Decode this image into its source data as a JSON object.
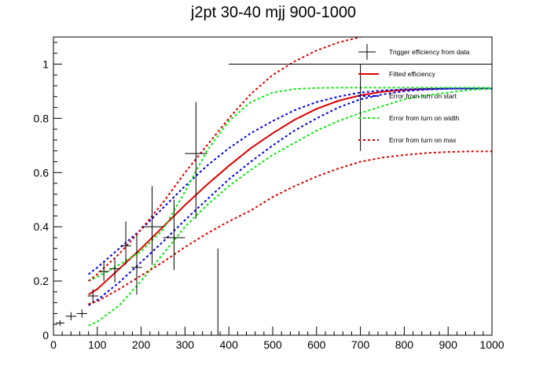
{
  "chart_data": {
    "type": "line",
    "title": "j2pt 30-40 mjj 900-1000",
    "xlabel": "",
    "ylabel": "",
    "xlim": [
      0,
      1000
    ],
    "ylim": [
      0,
      1.1
    ],
    "x_ticks": [
      "0",
      "100",
      "200",
      "300",
      "400",
      "500",
      "600",
      "700",
      "800",
      "900",
      "1000"
    ],
    "y_ticks": [
      "0",
      "0.2",
      "0.4",
      "0.6",
      "0.8",
      "1"
    ],
    "grid": false,
    "legend_position": "top-right",
    "data_points": {
      "name": "Trigger efficiency from data",
      "color": "#000000",
      "points": [
        {
          "x": 15,
          "y": 0.045,
          "xerr": 10,
          "ylo": 0.035,
          "yhi": 0.055
        },
        {
          "x": 40,
          "y": 0.07,
          "xerr": 12,
          "ylo": 0.055,
          "yhi": 0.085
        },
        {
          "x": 65,
          "y": 0.08,
          "xerr": 12,
          "ylo": 0.065,
          "yhi": 0.095
        },
        {
          "x": 90,
          "y": 0.145,
          "xerr": 12,
          "ylo": 0.12,
          "yhi": 0.17
        },
        {
          "x": 115,
          "y": 0.235,
          "xerr": 12,
          "ylo": 0.2,
          "yhi": 0.27
        },
        {
          "x": 140,
          "y": 0.245,
          "xerr": 12,
          "ylo": 0.195,
          "yhi": 0.28
        },
        {
          "x": 165,
          "y": 0.33,
          "xerr": 12,
          "ylo": 0.26,
          "yhi": 0.42
        },
        {
          "x": 190,
          "y": 0.25,
          "xerr": 12,
          "ylo": 0.15,
          "yhi": 0.37
        },
        {
          "x": 225,
          "y": 0.4,
          "xerr": 25,
          "ylo": 0.26,
          "yhi": 0.55
        },
        {
          "x": 275,
          "y": 0.36,
          "xerr": 25,
          "ylo": 0.24,
          "yhi": 0.5
        },
        {
          "x": 325,
          "y": 0.67,
          "xerr": 25,
          "ylo": 0.43,
          "yhi": 0.86
        },
        {
          "x": 375,
          "y": 0,
          "xerr": 0,
          "ylo": 0,
          "yhi": 0.32
        },
        {
          "x": 700,
          "y": 1.0,
          "xerr": 300,
          "ylo": 0.68,
          "yhi": 1.0
        }
      ]
    },
    "series": [
      {
        "name": "Fitted efficiency",
        "color": "#e00000",
        "dash": "solid",
        "x": [
          80,
          100,
          150,
          200,
          250,
          300,
          350,
          400,
          450,
          500,
          550,
          600,
          650,
          700,
          750,
          800,
          850,
          900,
          950,
          1000
        ],
        "y": [
          0.15,
          0.17,
          0.245,
          0.32,
          0.4,
          0.48,
          0.555,
          0.625,
          0.69,
          0.745,
          0.795,
          0.835,
          0.865,
          0.885,
          0.898,
          0.905,
          0.908,
          0.91,
          0.91,
          0.91
        ]
      },
      {
        "name": "Error from turn on start",
        "color": "#0000ee",
        "dash": "dotted",
        "x": [
          80,
          100,
          150,
          200,
          250,
          300,
          350,
          400,
          450,
          500,
          550,
          600,
          650,
          700,
          750,
          800,
          850,
          900,
          950,
          1000
        ],
        "y": [
          0.225,
          0.25,
          0.32,
          0.39,
          0.47,
          0.55,
          0.625,
          0.69,
          0.745,
          0.79,
          0.83,
          0.86,
          0.88,
          0.895,
          0.903,
          0.907,
          0.909,
          0.91,
          0.91,
          0.91
        ]
      },
      {
        "name": "Error from turn on start",
        "color": "#0000ee",
        "dash": "dotted",
        "x": [
          80,
          100,
          150,
          200,
          250,
          300,
          350,
          400,
          450,
          500,
          550,
          600,
          650,
          700,
          750,
          800,
          850,
          900,
          950,
          1000
        ],
        "y": [
          0.11,
          0.13,
          0.195,
          0.27,
          0.345,
          0.425,
          0.5,
          0.575,
          0.64,
          0.7,
          0.755,
          0.8,
          0.84,
          0.87,
          0.888,
          0.9,
          0.906,
          0.909,
          0.91,
          0.91
        ]
      },
      {
        "name": "Error from turn on width",
        "color": "#00ee00",
        "dash": "dotted",
        "x": [
          80,
          100,
          150,
          200,
          250,
          300,
          350,
          400,
          450,
          500,
          550,
          600,
          650,
          700,
          750,
          800,
          850,
          900,
          950,
          1000
        ],
        "y": [
          0.2,
          0.215,
          0.26,
          0.31,
          0.39,
          0.53,
          0.68,
          0.79,
          0.86,
          0.895,
          0.908,
          0.912,
          0.913,
          0.913,
          0.913,
          0.913,
          0.913,
          0.913,
          0.913,
          0.913
        ]
      },
      {
        "name": "Error from turn on width",
        "color": "#00ee00",
        "dash": "dotted",
        "x": [
          80,
          100,
          150,
          200,
          250,
          300,
          350,
          400,
          450,
          500,
          550,
          600,
          650,
          700,
          750,
          800,
          850,
          900,
          950,
          1000
        ],
        "y": [
          0.035,
          0.05,
          0.11,
          0.2,
          0.3,
          0.4,
          0.48,
          0.55,
          0.61,
          0.665,
          0.71,
          0.755,
          0.79,
          0.82,
          0.845,
          0.87,
          0.885,
          0.895,
          0.905,
          0.91
        ]
      },
      {
        "name": "Error from turn on max",
        "color": "#dd0000",
        "dash": "dotted",
        "x": [
          80,
          100,
          150,
          200,
          250,
          300,
          350,
          400,
          450,
          500,
          550,
          600,
          650,
          700
        ],
        "y": [
          0.2,
          0.225,
          0.3,
          0.39,
          0.49,
          0.6,
          0.7,
          0.8,
          0.89,
          0.96,
          1.01,
          1.05,
          1.08,
          1.1
        ]
      },
      {
        "name": "Error from turn on max",
        "color": "#dd0000",
        "dash": "dotted",
        "x": [
          80,
          100,
          150,
          200,
          250,
          300,
          350,
          400,
          450,
          500,
          550,
          600,
          650,
          700,
          750,
          800,
          850,
          900,
          950,
          1000
        ],
        "y": [
          0.115,
          0.125,
          0.17,
          0.22,
          0.27,
          0.325,
          0.375,
          0.42,
          0.46,
          0.51,
          0.55,
          0.585,
          0.615,
          0.64,
          0.655,
          0.665,
          0.672,
          0.676,
          0.678,
          0.678
        ]
      }
    ],
    "legend": [
      {
        "label": "Trigger efficiency from data",
        "style": "errorbar",
        "color": "#000000"
      },
      {
        "label": "Fitted efficiency",
        "style": "solid",
        "color": "#e00000"
      },
      {
        "label": "Error from turn on start",
        "style": "dotted",
        "color": "#0000ee"
      },
      {
        "label": "Error from turn on width",
        "style": "dotted",
        "color": "#00ee00"
      },
      {
        "label": "Error from turn on max",
        "style": "dotted",
        "color": "#dd0000"
      }
    ]
  }
}
